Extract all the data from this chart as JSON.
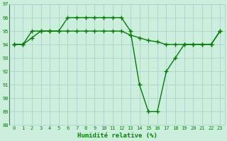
{
  "x": [
    0,
    1,
    2,
    3,
    4,
    5,
    6,
    7,
    8,
    9,
    10,
    11,
    12,
    13,
    14,
    15,
    16,
    17,
    18,
    19,
    20,
    21,
    22,
    23
  ],
  "line1": [
    94,
    94,
    94.5,
    95,
    95,
    95,
    95,
    95,
    95,
    95,
    95,
    95,
    95,
    94.7,
    94.5,
    94.3,
    94.2,
    94,
    94,
    94,
    94,
    94,
    94,
    95
  ],
  "line2": [
    94,
    94,
    95,
    95,
    95,
    95,
    96,
    96,
    96,
    96,
    96,
    96,
    96,
    95,
    91,
    89,
    89,
    92,
    93,
    94,
    94,
    94,
    94,
    95
  ],
  "line_color": "#008000",
  "bg_color": "#cceedd",
  "grid_color": "#aacccc",
  "xlabel": "Humidité relative (%)",
  "ylim_min": 88,
  "ylim_max": 97,
  "yticks": [
    88,
    89,
    90,
    91,
    92,
    93,
    94,
    95,
    96,
    97
  ],
  "xticks": [
    0,
    1,
    2,
    3,
    4,
    5,
    6,
    7,
    8,
    9,
    10,
    11,
    12,
    13,
    14,
    15,
    16,
    17,
    18,
    19,
    20,
    21,
    22,
    23
  ],
  "xlabel_color": "#008800",
  "tick_color": "#008800",
  "marker": "+",
  "markersize": 4,
  "linewidth": 1.0
}
